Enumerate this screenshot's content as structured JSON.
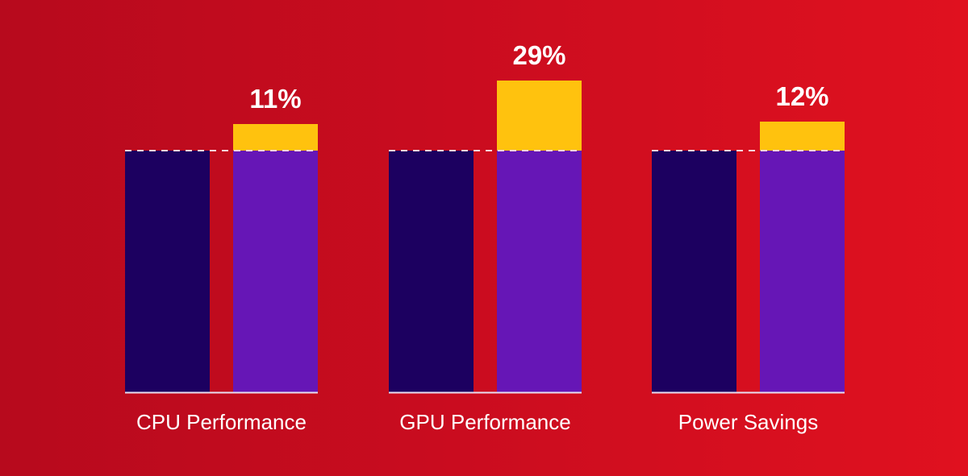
{
  "chart_data": {
    "type": "bar",
    "title": "",
    "xlabel": "",
    "ylabel": "",
    "categories": [
      "CPU Performance",
      "GPU Performance",
      "Power Savings"
    ],
    "series": [
      {
        "values": [
          100,
          100,
          100
        ]
      },
      {
        "values": [
          111,
          129,
          112
        ]
      }
    ],
    "improvement_labels": [
      "11%",
      "29%",
      "12%"
    ],
    "improvement_values": [
      11,
      29,
      12
    ],
    "ylim": [
      0,
      130
    ],
    "grid": false,
    "reference_line": {
      "value": 100,
      "style": "dashed"
    },
    "colors": {
      "baseline_bar": "#1c0060",
      "improved_bar": "#6616b6",
      "improvement": "#ffc20e",
      "text": "#ffffff",
      "background": "#c90c1f"
    }
  }
}
